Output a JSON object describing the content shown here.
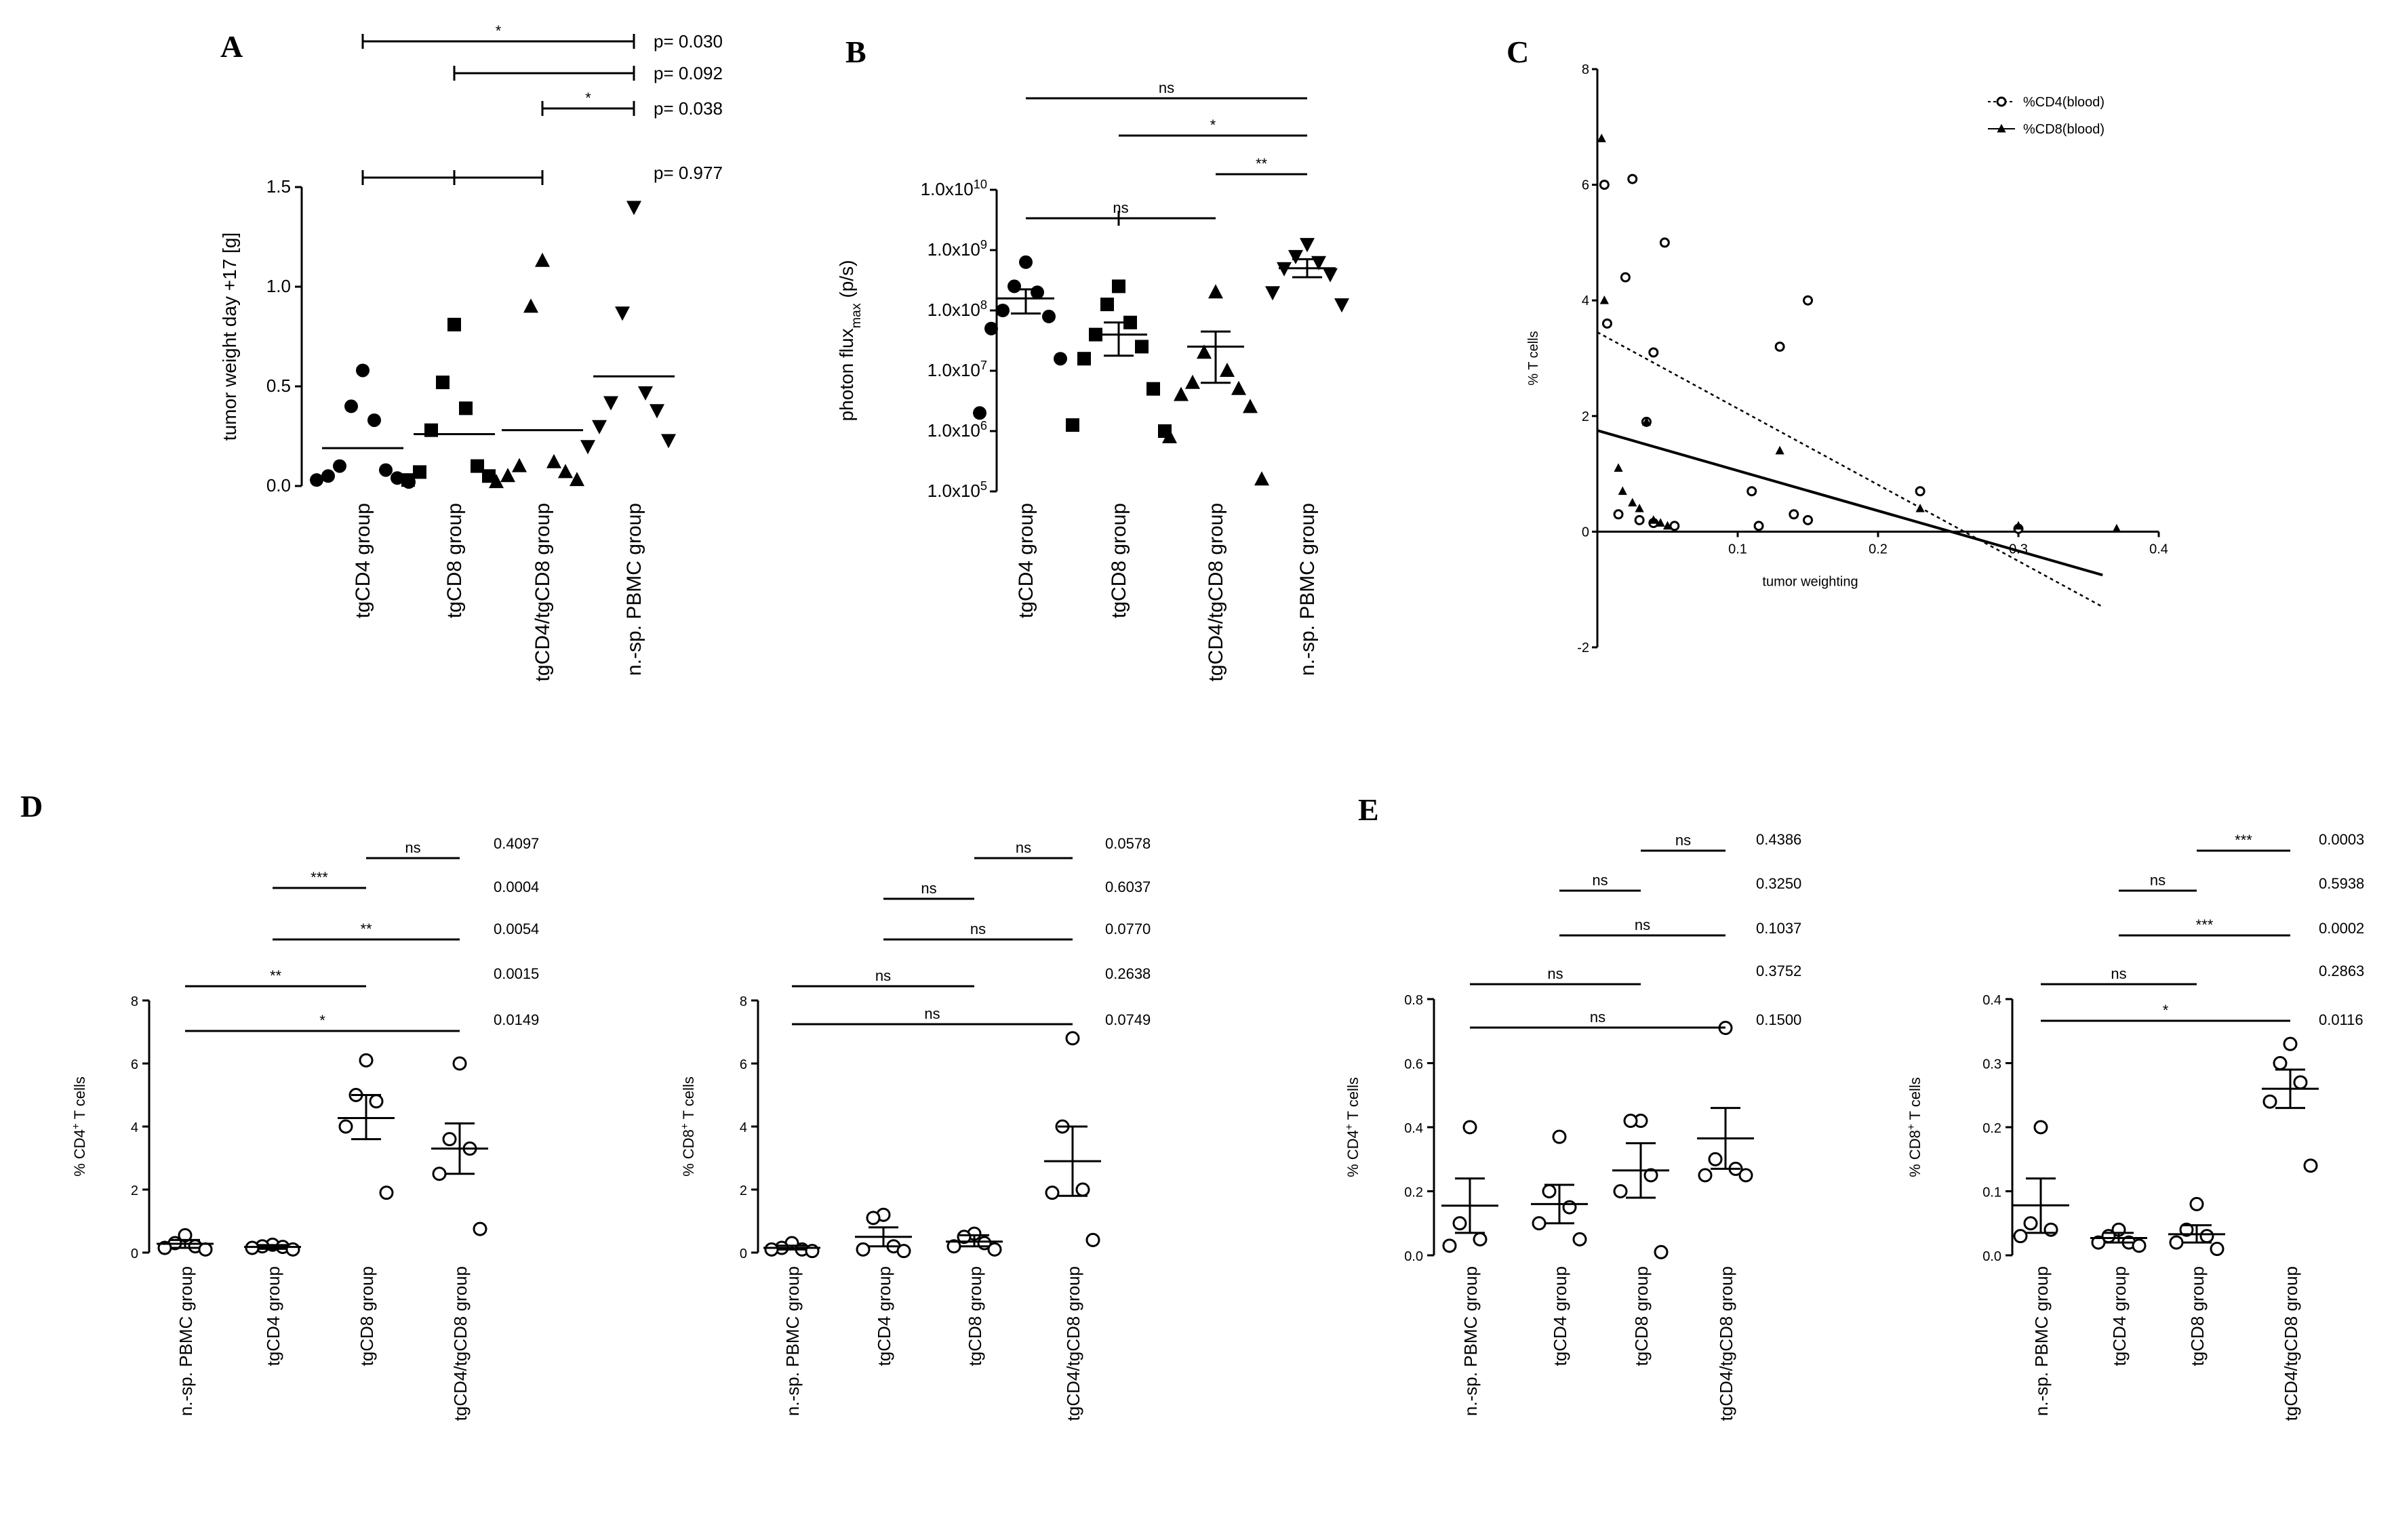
{
  "chart_data": [
    {
      "id": "A",
      "type": "scatter",
      "panel_label": "A",
      "ylabel": "tumor weight day +17 [g]",
      "ylim": [
        0,
        1.5
      ],
      "yticks": [
        0.0,
        0.5,
        1.0,
        1.5
      ],
      "ytick_labels": [
        "0.0",
        "0.5",
        "1.0",
        "1.5"
      ],
      "categories": [
        "tgCD4 group",
        "tgCD8 group",
        "tgCD4/tgCD8 group",
        "n.-sp. PBMC group"
      ],
      "markers": [
        "circle-filled",
        "square-filled",
        "triangle-filled",
        "triangle-down-filled"
      ],
      "points": [
        [
          0.58,
          0.4,
          0.33,
          0.1,
          0.08,
          0.05,
          0.04,
          0.03,
          0.02
        ],
        [
          0.81,
          0.52,
          0.39,
          0.28,
          0.1,
          0.07,
          0.05,
          0.03
        ],
        [
          1.13,
          0.9,
          0.12,
          0.1,
          0.07,
          0.05,
          0.03,
          0.02
        ],
        [
          1.4,
          0.87,
          0.47,
          0.42,
          0.38,
          0.3,
          0.23,
          0.2
        ]
      ],
      "means": [
        0.19,
        0.26,
        0.28,
        0.55
      ],
      "brackets": [
        {
          "from": 0,
          "to": 3,
          "label": "*",
          "p": "p= 0.030"
        },
        {
          "from": 1,
          "to": 3,
          "label": "",
          "p": "p= 0.092"
        },
        {
          "from": 2,
          "to": 3,
          "label": "*",
          "p": "p= 0.038"
        },
        {
          "from": 0,
          "to": 2,
          "label": "",
          "p": "p= 0.977",
          "mid_tick": 1
        }
      ]
    },
    {
      "id": "B",
      "type": "scatter",
      "panel_label": "B",
      "scale": "log",
      "ylabel": "photon flux",
      "ylabel_sub": "max",
      "ylabel_suffix": " (p/s)",
      "ylim_log10": [
        5,
        10
      ],
      "ytick_exps": [
        5,
        6,
        7,
        8,
        9,
        10
      ],
      "ytick_base": "1.0x10",
      "categories": [
        "tgCD4 group",
        "tgCD8 group",
        "tgCD4/tgCD8 group",
        "n.-sp. PBMC group"
      ],
      "markers": [
        "circle-filled",
        "square-filled",
        "triangle-filled",
        "triangle-down-filled"
      ],
      "points_log10": [
        [
          8.8,
          8.4,
          8.3,
          8.0,
          7.9,
          7.7,
          7.2,
          6.3
        ],
        [
          8.4,
          8.1,
          7.8,
          7.6,
          7.4,
          7.2,
          6.7,
          6.1,
          6.0
        ],
        [
          8.3,
          7.3,
          7.0,
          6.8,
          6.7,
          6.6,
          6.4,
          5.9,
          5.2
        ],
        [
          9.1,
          8.9,
          8.8,
          8.7,
          8.6,
          8.3,
          8.1
        ]
      ],
      "mean_log10": [
        8.2,
        7.6,
        7.4,
        8.7
      ],
      "sem_log10": [
        [
          7.95,
          8.35
        ],
        [
          7.25,
          7.8
        ],
        [
          6.8,
          7.65
        ],
        [
          8.55,
          8.85
        ]
      ],
      "brackets": [
        {
          "from": 0,
          "to": 3,
          "label": "ns"
        },
        {
          "from": 1,
          "to": 3,
          "label": "*"
        },
        {
          "from": 2,
          "to": 3,
          "label": "**"
        },
        {
          "from": 0,
          "to": 2,
          "label": "ns",
          "mid_tick": 1
        }
      ]
    },
    {
      "id": "C",
      "type": "scatter",
      "panel_label": "C",
      "xlabel": "tumor weighting",
      "ylabel": "% T cells",
      "xlim": [
        0,
        0.4
      ],
      "ylim": [
        -2,
        8
      ],
      "xticks": [
        0.1,
        0.2,
        0.3,
        0.4
      ],
      "xtick_labels": [
        "0.1",
        "0.2",
        "0.3",
        "0.4"
      ],
      "yticks": [
        -2,
        0,
        2,
        4,
        6,
        8
      ],
      "ytick_labels": [
        "-2",
        "0",
        "2",
        "4",
        "6",
        "8"
      ],
      "legend": [
        "%CD4(blood)",
        "%CD8(blood)"
      ],
      "series": [
        {
          "name": "%CD4(blood)",
          "marker": "circle-open",
          "line": "dotted",
          "x": [
            0.005,
            0.02,
            0.025,
            0.035,
            0.04,
            0.048,
            0.007,
            0.015,
            0.03,
            0.04,
            0.055,
            0.11,
            0.115,
            0.13,
            0.14,
            0.15,
            0.15,
            0.23,
            0.3
          ],
          "y": [
            6.0,
            4.4,
            6.1,
            1.9,
            3.1,
            5.0,
            3.6,
            0.3,
            0.2,
            0.15,
            0.1,
            0.7,
            0.1,
            3.2,
            0.3,
            0.2,
            4.0,
            0.7,
            0.05
          ],
          "fit": [
            [
              0,
              3.45
            ],
            [
              0.36,
              -1.3
            ]
          ]
        },
        {
          "name": "%CD8(blood)",
          "marker": "triangle-filled",
          "line": "solid",
          "x": [
            0.003,
            0.005,
            0.015,
            0.018,
            0.025,
            0.03,
            0.035,
            0.04,
            0.045,
            0.05,
            0.13,
            0.23,
            0.3,
            0.37
          ],
          "y": [
            6.8,
            4.0,
            1.1,
            0.7,
            0.5,
            0.4,
            1.9,
            0.2,
            0.15,
            0.1,
            1.4,
            0.4,
            0.1,
            0.05
          ],
          "fit": [
            [
              0,
              1.75
            ],
            [
              0.36,
              -0.75
            ]
          ]
        }
      ]
    },
    {
      "id": "D1",
      "type": "scatter",
      "panel_label": "D",
      "ylabel": "% CD4",
      "ylabel_sup": "+",
      "ylabel_suffix": " T cells",
      "ylim": [
        0,
        8
      ],
      "yticks": [
        0,
        2,
        4,
        6,
        8
      ],
      "ytick_labels": [
        "0",
        "2",
        "4",
        "6",
        "8"
      ],
      "categories": [
        "n.-sp. PBMC group",
        "tgCD4 group",
        "tgCD8 group",
        "tgCD4/tgCD8 group"
      ],
      "points": [
        [
          0.55,
          0.3,
          0.2,
          0.15,
          0.1
        ],
        [
          0.25,
          0.2,
          0.18,
          0.15,
          0.1
        ],
        [
          6.1,
          5.0,
          4.8,
          4.0,
          1.9
        ],
        [
          6.0,
          3.6,
          3.3,
          2.5,
          0.75
        ]
      ],
      "means": [
        0.28,
        0.18,
        4.27,
        3.3
      ],
      "sem": [
        [
          0.15,
          0.4
        ],
        [
          0.12,
          0.24
        ],
        [
          3.6,
          5.0
        ],
        [
          2.5,
          4.1
        ]
      ],
      "brackets": [
        {
          "from": 2,
          "to": 3,
          "label": "ns",
          "p": "0.4097"
        },
        {
          "from": 1,
          "to": 2,
          "label": "***",
          "p": "0.0004"
        },
        {
          "from": 1,
          "to": 3,
          "label": "**",
          "p": "0.0054"
        },
        {
          "from": 0,
          "to": 2,
          "label": "**",
          "p": "0.0015"
        },
        {
          "from": 0,
          "to": 3,
          "label": "*",
          "p": "0.0149"
        }
      ]
    },
    {
      "id": "D2",
      "type": "scatter",
      "panel_label": "",
      "ylabel": "% CD8",
      "ylabel_sup": "+",
      "ylabel_suffix": " T cells",
      "ylim": [
        0,
        8
      ],
      "yticks": [
        0,
        2,
        4,
        6,
        8
      ],
      "ytick_labels": [
        "0",
        "2",
        "4",
        "6",
        "8"
      ],
      "categories": [
        "n.-sp. PBMC group",
        "tgCD4 group",
        "tgCD8 group",
        "tgCD4/tgCD8 group"
      ],
      "points": [
        [
          0.3,
          0.15,
          0.1,
          0.1,
          0.05
        ],
        [
          1.2,
          1.1,
          0.2,
          0.1,
          0.05
        ],
        [
          0.6,
          0.5,
          0.3,
          0.2,
          0.1
        ],
        [
          6.8,
          4.0,
          2.0,
          1.9,
          0.4
        ]
      ],
      "means": [
        0.15,
        0.5,
        0.35,
        2.9
      ],
      "sem": [
        [
          0.1,
          0.22
        ],
        [
          0.2,
          0.8
        ],
        [
          0.2,
          0.55
        ],
        [
          1.8,
          4.0
        ]
      ],
      "brackets": [
        {
          "from": 2,
          "to": 3,
          "label": "ns",
          "p": "0.0578"
        },
        {
          "from": 1,
          "to": 2,
          "label": "ns",
          "p": "0.6037"
        },
        {
          "from": 1,
          "to": 3,
          "label": "ns",
          "p": "0.0770"
        },
        {
          "from": 0,
          "to": 2,
          "label": "ns",
          "p": "0.2638"
        },
        {
          "from": 0,
          "to": 3,
          "label": "ns",
          "p": "0.0749"
        }
      ]
    },
    {
      "id": "E1",
      "type": "scatter",
      "panel_label": "E",
      "ylabel": "% CD4",
      "ylabel_sup": "+",
      "ylabel_suffix": " T cells",
      "ylim": [
        0,
        0.8
      ],
      "yticks": [
        0,
        0.2,
        0.4,
        0.6,
        0.8
      ],
      "ytick_labels": [
        "0.0",
        "0.2",
        "0.4",
        "0.6",
        "0.8"
      ],
      "categories": [
        "n.-sp. PBMC group",
        "tgCD4 group",
        "tgCD8 group",
        "tgCD4/tgCD8 group"
      ],
      "points": [
        [
          0.4,
          0.1,
          0.05,
          0.03
        ],
        [
          0.37,
          0.2,
          0.15,
          0.1,
          0.05
        ],
        [
          0.42,
          0.42,
          0.25,
          0.2,
          0.01
        ],
        [
          0.71,
          0.3,
          0.27,
          0.25,
          0.25
        ]
      ],
      "means": [
        0.155,
        0.16,
        0.265,
        0.365
      ],
      "sem": [
        [
          0.07,
          0.24
        ],
        [
          0.1,
          0.22
        ],
        [
          0.18,
          0.35
        ],
        [
          0.27,
          0.46
        ]
      ],
      "brackets": [
        {
          "from": 2,
          "to": 3,
          "label": "ns",
          "p": "0.4386"
        },
        {
          "from": 1,
          "to": 2,
          "label": "ns",
          "p": "0.3250"
        },
        {
          "from": 1,
          "to": 3,
          "label": "ns",
          "p": "0.1037"
        },
        {
          "from": 0,
          "to": 2,
          "label": "ns",
          "p": "0.3752"
        },
        {
          "from": 0,
          "to": 3,
          "label": "ns",
          "p": "0.1500"
        }
      ]
    },
    {
      "id": "E2",
      "type": "scatter",
      "panel_label": "",
      "ylabel": "% CD8",
      "ylabel_sup": "+",
      "ylabel_suffix": " T cells",
      "ylim": [
        0,
        0.4
      ],
      "yticks": [
        0,
        0.1,
        0.2,
        0.3,
        0.4
      ],
      "ytick_labels": [
        "0.0",
        "0.1",
        "0.2",
        "0.3",
        "0.4"
      ],
      "categories": [
        "n.-sp. PBMC group",
        "tgCD4 group",
        "tgCD8 group",
        "tgCD4/tgCD8 group"
      ],
      "points": [
        [
          0.2,
          0.05,
          0.04,
          0.03
        ],
        [
          0.04,
          0.03,
          0.02,
          0.02,
          0.015
        ],
        [
          0.08,
          0.04,
          0.03,
          0.02,
          0.01
        ],
        [
          0.33,
          0.3,
          0.27,
          0.24,
          0.14
        ]
      ],
      "means": [
        0.078,
        0.027,
        0.033,
        0.26
      ],
      "sem": [
        [
          0.035,
          0.12
        ],
        [
          0.02,
          0.035
        ],
        [
          0.02,
          0.047
        ],
        [
          0.23,
          0.29
        ]
      ],
      "brackets": [
        {
          "from": 2,
          "to": 3,
          "label": "***",
          "p": "0.0003"
        },
        {
          "from": 1,
          "to": 2,
          "label": "ns",
          "p": "0.5938"
        },
        {
          "from": 1,
          "to": 3,
          "label": "***",
          "p": "0.0002"
        },
        {
          "from": 0,
          "to": 2,
          "label": "ns",
          "p": "0.2863"
        },
        {
          "from": 0,
          "to": 3,
          "label": "*",
          "p": "0.0116"
        }
      ]
    }
  ]
}
